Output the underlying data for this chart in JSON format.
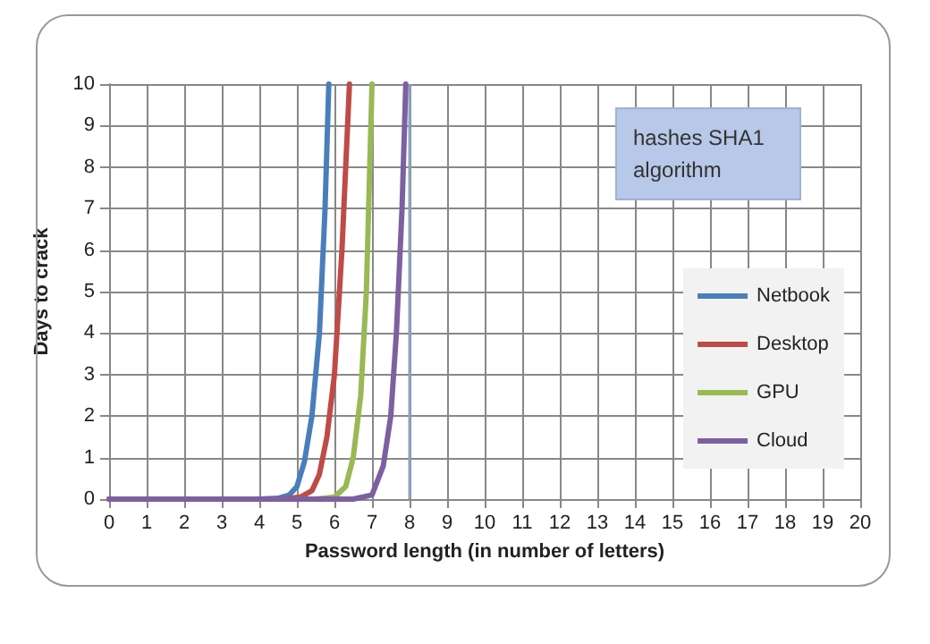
{
  "chart_data": {
    "type": "line",
    "title": "hashes SHA1 algorithm",
    "xlabel": "Password length (in number of letters)",
    "ylabel": "Days to crack",
    "xlim": [
      0,
      20
    ],
    "xticks": [
      0,
      1,
      2,
      3,
      4,
      5,
      6,
      7,
      8,
      9,
      10,
      11,
      12,
      13,
      14,
      15,
      16,
      17,
      18,
      19,
      20
    ],
    "ylim": [
      0,
      10
    ],
    "yticks": [
      0,
      1,
      2,
      3,
      4,
      5,
      6,
      7,
      8,
      9,
      10
    ],
    "grid": true,
    "legend": "right",
    "marker": "none",
    "line_style": "solid",
    "series": [
      {
        "name": "Netbook",
        "color": "#4a7ebb",
        "x": [
          0,
          4,
          4.5,
          4.8,
          5,
          5.2,
          5.4,
          5.6,
          5.75,
          5.85
        ],
        "values": [
          0,
          0,
          0.02,
          0.1,
          0.3,
          0.9,
          2,
          4,
          7,
          10
        ]
      },
      {
        "name": "Desktop",
        "color": "#be4b48",
        "x": [
          0,
          4.6,
          5.1,
          5.4,
          5.6,
          5.8,
          6,
          6.2,
          6.4
        ],
        "values": [
          0,
          0,
          0.05,
          0.2,
          0.6,
          1.5,
          3,
          6,
          10
        ]
      },
      {
        "name": "GPU",
        "color": "#98b954",
        "x": [
          0,
          5.5,
          6,
          6.3,
          6.5,
          6.7,
          6.85,
          7
        ],
        "values": [
          0,
          0,
          0.05,
          0.3,
          1,
          2.5,
          5,
          10
        ]
      },
      {
        "name": "Cloud",
        "color": "#7d60a0",
        "x": [
          0,
          6.5,
          7,
          7.3,
          7.5,
          7.65,
          7.8,
          7.9
        ],
        "values": [
          0,
          0,
          0.1,
          0.8,
          2,
          4,
          7,
          10
        ]
      }
    ],
    "ref_lines": [
      {
        "axis": "x",
        "value": 8,
        "color": "#8aa4bf"
      }
    ]
  }
}
